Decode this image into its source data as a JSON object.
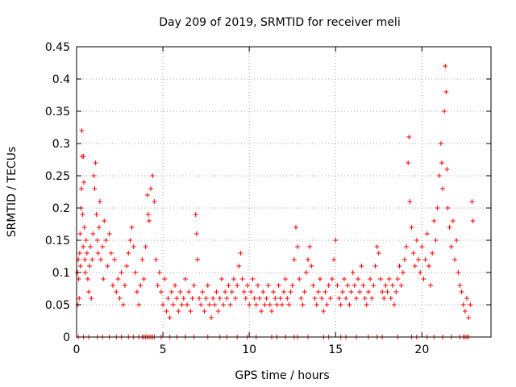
{
  "chart_data": {
    "type": "scatter",
    "title": "Day 209 of 2019, SRMTID for receiver meli",
    "xlabel": "GPS time / hours",
    "ylabel": "SRMTID / TECUs",
    "xlim": [
      0,
      24
    ],
    "ylim": [
      0,
      0.45
    ],
    "x_ticks": [
      0,
      5,
      10,
      15,
      20
    ],
    "y_ticks": [
      0,
      0.05,
      0.1,
      0.15,
      0.2,
      0.25,
      0.3,
      0.35,
      0.4,
      0.45
    ],
    "x_tick_labels": [
      "0",
      "5",
      "10",
      "15",
      "20"
    ],
    "y_tick_labels": [
      "0",
      "0.05",
      "0.1",
      "0.15",
      "0.2",
      "0.25",
      "0.3",
      "0.35",
      "0.4",
      "0.45"
    ],
    "grid": true,
    "marker": "+",
    "marker_color": "#ff0000",
    "series": [
      {
        "points": [
          [
            0.05,
            0.1
          ],
          [
            0.08,
            0.05
          ],
          [
            0.1,
            0.12
          ],
          [
            0.12,
            0.09
          ],
          [
            0.15,
            0.06
          ],
          [
            0.18,
            0.13
          ],
          [
            0.2,
            0.16
          ],
          [
            0.22,
            0.11
          ],
          [
            0.25,
            0.2
          ],
          [
            0.28,
            0.23
          ],
          [
            0.3,
            0.32
          ],
          [
            0.32,
            0.28
          ],
          [
            0.35,
            0.19
          ],
          [
            0.38,
            0.14
          ],
          [
            0.4,
            0.28
          ],
          [
            0.42,
            0.24
          ],
          [
            0.45,
            0.17
          ],
          [
            0.48,
            0.12
          ],
          [
            0.5,
            0.1
          ],
          [
            0.55,
            0.15
          ],
          [
            0.6,
            0.13
          ],
          [
            0.65,
            0.09
          ],
          [
            0.7,
            0.07
          ],
          [
            0.75,
            0.11
          ],
          [
            0.8,
            0.14
          ],
          [
            0.85,
            0.06
          ],
          [
            0.9,
            0.12
          ],
          [
            0.95,
            0.16
          ],
          [
            1.0,
            0.25
          ],
          [
            1.05,
            0.23
          ],
          [
            1.1,
            0.27
          ],
          [
            1.15,
            0.19
          ],
          [
            1.2,
            0.15
          ],
          [
            1.25,
            0.13
          ],
          [
            1.3,
            0.17
          ],
          [
            1.35,
            0.21
          ],
          [
            1.4,
            0.12
          ],
          [
            1.5,
            0.14
          ],
          [
            1.55,
            0.09
          ],
          [
            1.6,
            0.18
          ],
          [
            1.7,
            0.15
          ],
          [
            1.8,
            0.11
          ],
          [
            1.9,
            0.16
          ],
          [
            2.0,
            0.13
          ],
          [
            2.1,
            0.08
          ],
          [
            2.2,
            0.12
          ],
          [
            2.3,
            0.07
          ],
          [
            2.4,
            0.09
          ],
          [
            2.5,
            0.06
          ],
          [
            2.6,
            0.1
          ],
          [
            2.7,
            0.05
          ],
          [
            2.8,
            0.08
          ],
          [
            2.9,
            0.11
          ],
          [
            3.0,
            0.13
          ],
          [
            3.1,
            0.15
          ],
          [
            3.2,
            0.17
          ],
          [
            3.3,
            0.14
          ],
          [
            3.4,
            0.1
          ],
          [
            3.5,
            0.07
          ],
          [
            3.6,
            0.05
          ],
          [
            3.7,
            0.08
          ],
          [
            3.8,
            0.12
          ],
          [
            3.9,
            0.09
          ],
          [
            4.0,
            0.14
          ],
          [
            4.1,
            0.22
          ],
          [
            4.15,
            0.19
          ],
          [
            4.2,
            0.18
          ],
          [
            4.3,
            0.23
          ],
          [
            4.4,
            0.25
          ],
          [
            4.5,
            0.21
          ],
          [
            4.6,
            0.12
          ],
          [
            4.7,
            0.08
          ],
          [
            4.8,
            0.1
          ],
          [
            4.9,
            0.07
          ],
          [
            5.0,
            0.05
          ],
          [
            5.1,
            0.09
          ],
          [
            5.2,
            0.04
          ],
          [
            5.3,
            0.06
          ],
          [
            5.4,
            0.03
          ],
          [
            5.5,
            0.07
          ],
          [
            5.6,
            0.05
          ],
          [
            5.7,
            0.08
          ],
          [
            5.8,
            0.06
          ],
          [
            5.9,
            0.04
          ],
          [
            6.0,
            0.07
          ],
          [
            6.1,
            0.05
          ],
          [
            6.2,
            0.06
          ],
          [
            6.3,
            0.09
          ],
          [
            6.4,
            0.05
          ],
          [
            6.5,
            0.07
          ],
          [
            6.6,
            0.04
          ],
          [
            6.7,
            0.06
          ],
          [
            6.8,
            0.08
          ],
          [
            6.9,
            0.19
          ],
          [
            6.95,
            0.16
          ],
          [
            7.0,
            0.12
          ],
          [
            7.1,
            0.06
          ],
          [
            7.2,
            0.05
          ],
          [
            7.3,
            0.07
          ],
          [
            7.4,
            0.04
          ],
          [
            7.5,
            0.06
          ],
          [
            7.6,
            0.08
          ],
          [
            7.7,
            0.05
          ],
          [
            7.8,
            0.03
          ],
          [
            7.9,
            0.06
          ],
          [
            8.0,
            0.05
          ],
          [
            8.1,
            0.07
          ],
          [
            8.2,
            0.04
          ],
          [
            8.3,
            0.06
          ],
          [
            8.4,
            0.09
          ],
          [
            8.5,
            0.05
          ],
          [
            8.6,
            0.07
          ],
          [
            8.7,
            0.06
          ],
          [
            8.8,
            0.08
          ],
          [
            8.9,
            0.05
          ],
          [
            9.0,
            0.07
          ],
          [
            9.1,
            0.09
          ],
          [
            9.2,
            0.06
          ],
          [
            9.3,
            0.08
          ],
          [
            9.4,
            0.11
          ],
          [
            9.5,
            0.13
          ],
          [
            9.6,
            0.09
          ],
          [
            9.7,
            0.07
          ],
          [
            9.8,
            0.06
          ],
          [
            9.9,
            0.08
          ],
          [
            10.0,
            0.05
          ],
          [
            10.1,
            0.07
          ],
          [
            10.2,
            0.09
          ],
          [
            10.3,
            0.06
          ],
          [
            10.4,
            0.05
          ],
          [
            10.5,
            0.08
          ],
          [
            10.6,
            0.06
          ],
          [
            10.7,
            0.04
          ],
          [
            10.8,
            0.07
          ],
          [
            10.9,
            0.05
          ],
          [
            11.0,
            0.06
          ],
          [
            11.1,
            0.08
          ],
          [
            11.2,
            0.05
          ],
          [
            11.3,
            0.04
          ],
          [
            11.4,
            0.07
          ],
          [
            11.5,
            0.06
          ],
          [
            11.6,
            0.05
          ],
          [
            11.7,
            0.08
          ],
          [
            11.8,
            0.06
          ],
          [
            11.9,
            0.05
          ],
          [
            12.0,
            0.07
          ],
          [
            12.1,
            0.09
          ],
          [
            12.2,
            0.06
          ],
          [
            12.3,
            0.05
          ],
          [
            12.4,
            0.07
          ],
          [
            12.5,
            0.08
          ],
          [
            12.6,
            0.12
          ],
          [
            12.7,
            0.17
          ],
          [
            12.8,
            0.14
          ],
          [
            12.9,
            0.09
          ],
          [
            13.0,
            0.06
          ],
          [
            13.1,
            0.05
          ],
          [
            13.2,
            0.07
          ],
          [
            13.3,
            0.1
          ],
          [
            13.4,
            0.12
          ],
          [
            13.5,
            0.14
          ],
          [
            13.6,
            0.11
          ],
          [
            13.7,
            0.08
          ],
          [
            13.8,
            0.06
          ],
          [
            13.9,
            0.05
          ],
          [
            14.0,
            0.07
          ],
          [
            14.1,
            0.09
          ],
          [
            14.2,
            0.06
          ],
          [
            14.3,
            0.04
          ],
          [
            14.4,
            0.07
          ],
          [
            14.5,
            0.05
          ],
          [
            14.6,
            0.08
          ],
          [
            14.7,
            0.06
          ],
          [
            14.8,
            0.09
          ],
          [
            14.9,
            0.12
          ],
          [
            15.0,
            0.15
          ],
          [
            15.1,
            0.08
          ],
          [
            15.2,
            0.06
          ],
          [
            15.3,
            0.05
          ],
          [
            15.4,
            0.07
          ],
          [
            15.5,
            0.09
          ],
          [
            15.6,
            0.06
          ],
          [
            15.7,
            0.08
          ],
          [
            15.8,
            0.05
          ],
          [
            15.9,
            0.07
          ],
          [
            16.0,
            0.1
          ],
          [
            16.1,
            0.08
          ],
          [
            16.2,
            0.06
          ],
          [
            16.3,
            0.09
          ],
          [
            16.4,
            0.07
          ],
          [
            16.5,
            0.11
          ],
          [
            16.6,
            0.08
          ],
          [
            16.7,
            0.06
          ],
          [
            16.8,
            0.05
          ],
          [
            16.9,
            0.07
          ],
          [
            17.0,
            0.09
          ],
          [
            17.1,
            0.06
          ],
          [
            17.2,
            0.08
          ],
          [
            17.3,
            0.11
          ],
          [
            17.4,
            0.14
          ],
          [
            17.5,
            0.13
          ],
          [
            17.6,
            0.09
          ],
          [
            17.7,
            0.07
          ],
          [
            17.8,
            0.06
          ],
          [
            17.9,
            0.08
          ],
          [
            18.0,
            0.07
          ],
          [
            18.1,
            0.09
          ],
          [
            18.2,
            0.06
          ],
          [
            18.3,
            0.08
          ],
          [
            18.4,
            0.05
          ],
          [
            18.5,
            0.07
          ],
          [
            18.6,
            0.09
          ],
          [
            18.7,
            0.11
          ],
          [
            18.8,
            0.08
          ],
          [
            18.9,
            0.1
          ],
          [
            19.0,
            0.12
          ],
          [
            19.1,
            0.14
          ],
          [
            19.2,
            0.27
          ],
          [
            19.25,
            0.31
          ],
          [
            19.3,
            0.21
          ],
          [
            19.4,
            0.17
          ],
          [
            19.5,
            0.13
          ],
          [
            19.6,
            0.11
          ],
          [
            19.7,
            0.15
          ],
          [
            19.8,
            0.12
          ],
          [
            19.9,
            0.1
          ],
          [
            20.0,
            0.14
          ],
          [
            20.1,
            0.09
          ],
          [
            20.2,
            0.12
          ],
          [
            20.3,
            0.16
          ],
          [
            20.4,
            0.11
          ],
          [
            20.5,
            0.08
          ],
          [
            20.6,
            0.13
          ],
          [
            20.7,
            0.18
          ],
          [
            20.8,
            0.15
          ],
          [
            20.9,
            0.2
          ],
          [
            21.0,
            0.25
          ],
          [
            21.1,
            0.3
          ],
          [
            21.15,
            0.27
          ],
          [
            21.2,
            0.23
          ],
          [
            21.3,
            0.35
          ],
          [
            21.35,
            0.42
          ],
          [
            21.4,
            0.38
          ],
          [
            21.45,
            0.26
          ],
          [
            21.5,
            0.2
          ],
          [
            21.6,
            0.17
          ],
          [
            21.7,
            0.14
          ],
          [
            21.8,
            0.18
          ],
          [
            21.9,
            0.12
          ],
          [
            22.0,
            0.15
          ],
          [
            22.1,
            0.1
          ],
          [
            22.2,
            0.08
          ],
          [
            22.3,
            0.07
          ],
          [
            22.4,
            0.05
          ],
          [
            22.5,
            0.04
          ],
          [
            22.6,
            0.06
          ],
          [
            22.7,
            0.03
          ],
          [
            22.8,
            0.05
          ],
          [
            22.9,
            0.21
          ],
          [
            22.95,
            0.18
          ]
        ]
      }
    ],
    "zero_markers_x": [
      0.1,
      0.4,
      0.7,
      1.2,
      1.5,
      1.9,
      2.3,
      2.6,
      3.0,
      3.3,
      3.6,
      3.8,
      3.9,
      4.0,
      4.1,
      4.2,
      4.3,
      4.4,
      4.5,
      4.9,
      5.4,
      5.8,
      6.3,
      6.8,
      7.6,
      8.3,
      8.7,
      9.3,
      9.9,
      10.4,
      11.3,
      11.6,
      12.1,
      12.6,
      12.8,
      13.4,
      14.3,
      14.6,
      15.3,
      15.6,
      16.2,
      16.9,
      17.4,
      17.7,
      18.6,
      19.4,
      19.7,
      20.3,
      20.7,
      21.2,
      21.7,
      22.2,
      22.4,
      22.5,
      22.6,
      22.7
    ]
  }
}
